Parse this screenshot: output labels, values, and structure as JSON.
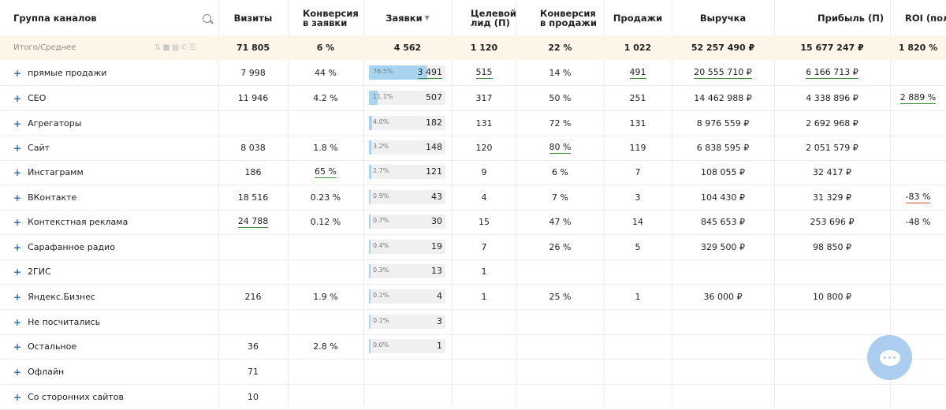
{
  "header": {
    "group": "Группа каналов",
    "visits": "Визиты",
    "conv_leads": "Конверсия в заявки",
    "leads": "Заявки",
    "target": "Целевой лид (П)",
    "conv_sales": "Конверсия в продажи",
    "sales": "Продажи",
    "revenue": "Выручка",
    "profit": "Прибыль (П)",
    "roi": "ROI (пол..."
  },
  "totals": {
    "label": "Итого/Среднее",
    "visits": "71 805",
    "conv_leads": "6 %",
    "leads": "4 562",
    "target": "1 120",
    "conv_sales": "22 %",
    "sales": "1 022",
    "revenue": "52 257 490 ₽",
    "profit": "15 677 247 ₽",
    "roi": "1 820 %"
  },
  "rows": [
    {
      "name": "прямые продажи",
      "visits": "7 998",
      "conv_leads": "44 %",
      "pct": "76.5%",
      "share": 0.765,
      "leads": "3 491",
      "target": "515",
      "conv_sales": "14 %",
      "sales": "491",
      "revenue": "20 555 710 ₽",
      "profit": "6 166 713 ₽",
      "roi": ""
    },
    {
      "name": "СЕО",
      "visits": "11 946",
      "conv_leads": "4.2 %",
      "pct": "11.1%",
      "share": 0.111,
      "leads": "507",
      "target": "317",
      "conv_sales": "50 %",
      "sales": "251",
      "revenue": "14 462 988 ₽",
      "profit": "4 338 896 ₽",
      "roi": "2 889 %"
    },
    {
      "name": "Агрегаторы",
      "visits": "",
      "conv_leads": "",
      "pct": "4.0%",
      "share": 0.04,
      "leads": "182",
      "target": "131",
      "conv_sales": "72 %",
      "sales": "131",
      "revenue": "8 976 559 ₽",
      "profit": "2 692 968 ₽",
      "roi": ""
    },
    {
      "name": "Сайт",
      "visits": "8 038",
      "conv_leads": "1.8 %",
      "pct": "3.2%",
      "share": 0.032,
      "leads": "148",
      "target": "120",
      "conv_sales": "80 %",
      "sales": "119",
      "revenue": "6 838 595 ₽",
      "profit": "2 051 579 ₽",
      "roi": ""
    },
    {
      "name": "Инстаграмм",
      "visits": "186",
      "conv_leads": "65 %",
      "pct": "2.7%",
      "share": 0.027,
      "leads": "121",
      "target": "9",
      "conv_sales": "6 %",
      "sales": "7",
      "revenue": "108 055 ₽",
      "profit": "32 417 ₽",
      "roi": ""
    },
    {
      "name": "ВКонтакте",
      "visits": "18 516",
      "conv_leads": "0.23 %",
      "pct": "0.9%",
      "share": 0.009,
      "leads": "43",
      "target": "4",
      "conv_sales": "7 %",
      "sales": "3",
      "revenue": "104 430 ₽",
      "profit": "31 329 ₽",
      "roi": "-83 %"
    },
    {
      "name": "Контекстная реклама",
      "visits": "24 788",
      "conv_leads": "0.12 %",
      "pct": "0.7%",
      "share": 0.007,
      "leads": "30",
      "target": "15",
      "conv_sales": "47 %",
      "sales": "14",
      "revenue": "845 653 ₽",
      "profit": "253 696 ₽",
      "roi": "-48 %"
    },
    {
      "name": "Сарафанное радио",
      "visits": "",
      "conv_leads": "",
      "pct": "0.4%",
      "share": 0.004,
      "leads": "19",
      "target": "7",
      "conv_sales": "26 %",
      "sales": "5",
      "revenue": "329 500 ₽",
      "profit": "98 850 ₽",
      "roi": ""
    },
    {
      "name": "2ГИС",
      "visits": "",
      "conv_leads": "",
      "pct": "0.3%",
      "share": 0.003,
      "leads": "13",
      "target": "1",
      "conv_sales": "",
      "sales": "",
      "revenue": "",
      "profit": "",
      "roi": ""
    },
    {
      "name": "Яндекс.Бизнес",
      "visits": "216",
      "conv_leads": "1.9 %",
      "pct": "0.1%",
      "share": 0.001,
      "leads": "4",
      "target": "1",
      "conv_sales": "25 %",
      "sales": "1",
      "revenue": "36 000 ₽",
      "profit": "10 800 ₽",
      "roi": ""
    },
    {
      "name": "Не посчитались",
      "visits": "",
      "conv_leads": "",
      "pct": "0.1%",
      "share": 0.001,
      "leads": "3",
      "target": "",
      "conv_sales": "",
      "sales": "",
      "revenue": "",
      "profit": "",
      "roi": ""
    },
    {
      "name": "Остальное",
      "visits": "36",
      "conv_leads": "2.8 %",
      "pct": "0.0%",
      "share": 0.0,
      "leads": "1",
      "target": "",
      "conv_sales": "",
      "sales": "",
      "revenue": "",
      "profit": "",
      "roi": ""
    },
    {
      "name": "Офлайн",
      "visits": "71",
      "conv_leads": "",
      "pct": "",
      "share": null,
      "leads": "",
      "target": "",
      "conv_sales": "",
      "sales": "",
      "revenue": "",
      "profit": "",
      "roi": ""
    },
    {
      "name": "Со сторонних сайтов",
      "visits": "10",
      "conv_leads": "",
      "pct": "",
      "share": null,
      "leads": "",
      "target": "",
      "conv_sales": "",
      "sales": "",
      "revenue": "",
      "profit": "",
      "roi": ""
    }
  ],
  "colors": {
    "bar_fill": "#a9d4ef",
    "total_bg": "#fbf6e8",
    "plus": "#2e6db4",
    "chat": "#aacdf0"
  }
}
